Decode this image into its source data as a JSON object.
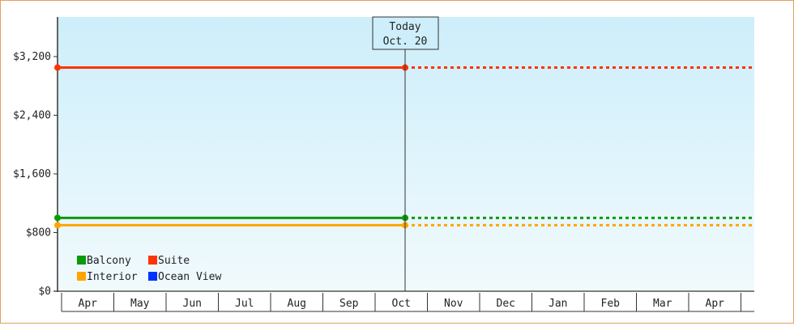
{
  "chart_data": {
    "type": "line",
    "y_ticks": [
      0,
      800,
      1600,
      2400,
      3200
    ],
    "y_tick_labels": [
      "$0",
      "$800",
      "$1,600",
      "$2,400",
      "$3,200"
    ],
    "ylim": [
      0,
      3740
    ],
    "categories": [
      "Apr",
      "May",
      "Jun",
      "Jul",
      "Aug",
      "Sep",
      "Oct",
      "Nov",
      "Dec",
      "Jan",
      "Feb",
      "Mar",
      "Apr"
    ],
    "today_line": {
      "line1": "Today",
      "line2": "Oct. 20"
    },
    "series": [
      {
        "name": "Balcony",
        "color": "#0a9a0a",
        "value_start": 1000,
        "value_today": 1000,
        "has_line": true
      },
      {
        "name": "Suite",
        "color": "#ff3300",
        "value_start": 3050,
        "value_today": 3050,
        "has_line": true
      },
      {
        "name": "Interior",
        "color": "#ffa500",
        "value_start": 900,
        "value_today": 900,
        "has_line": true
      },
      {
        "name": "Ocean View",
        "color": "#0033ff",
        "has_line": false
      }
    ],
    "legend_position": "bottom-left",
    "background_gradient": [
      "#cdeefa",
      "#f1fafd"
    ],
    "grid": false
  }
}
